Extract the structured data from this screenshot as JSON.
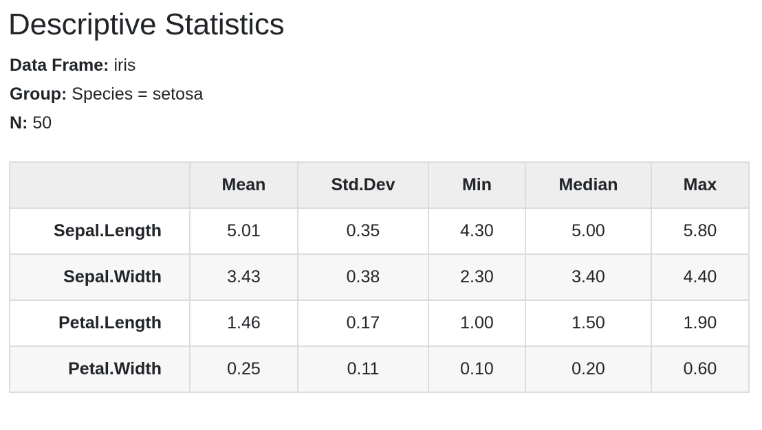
{
  "title": "Descriptive Statistics",
  "meta": {
    "data_frame_label": "Data Frame",
    "data_frame_value": "iris",
    "group_label": "Group",
    "group_value": "Species = setosa",
    "n_label": "N",
    "n_value": "50"
  },
  "table": {
    "columns": [
      "",
      "Mean",
      "Std.Dev",
      "Min",
      "Median",
      "Max"
    ],
    "rows": [
      {
        "label": "Sepal.Length",
        "values": [
          "5.01",
          "0.35",
          "4.30",
          "5.00",
          "5.80"
        ]
      },
      {
        "label": "Sepal.Width",
        "values": [
          "3.43",
          "0.38",
          "2.30",
          "3.40",
          "4.40"
        ]
      },
      {
        "label": "Petal.Length",
        "values": [
          "1.46",
          "0.17",
          "1.00",
          "1.50",
          "1.90"
        ]
      },
      {
        "label": "Petal.Width",
        "values": [
          "0.25",
          "0.11",
          "0.10",
          "0.20",
          "0.60"
        ]
      }
    ]
  }
}
